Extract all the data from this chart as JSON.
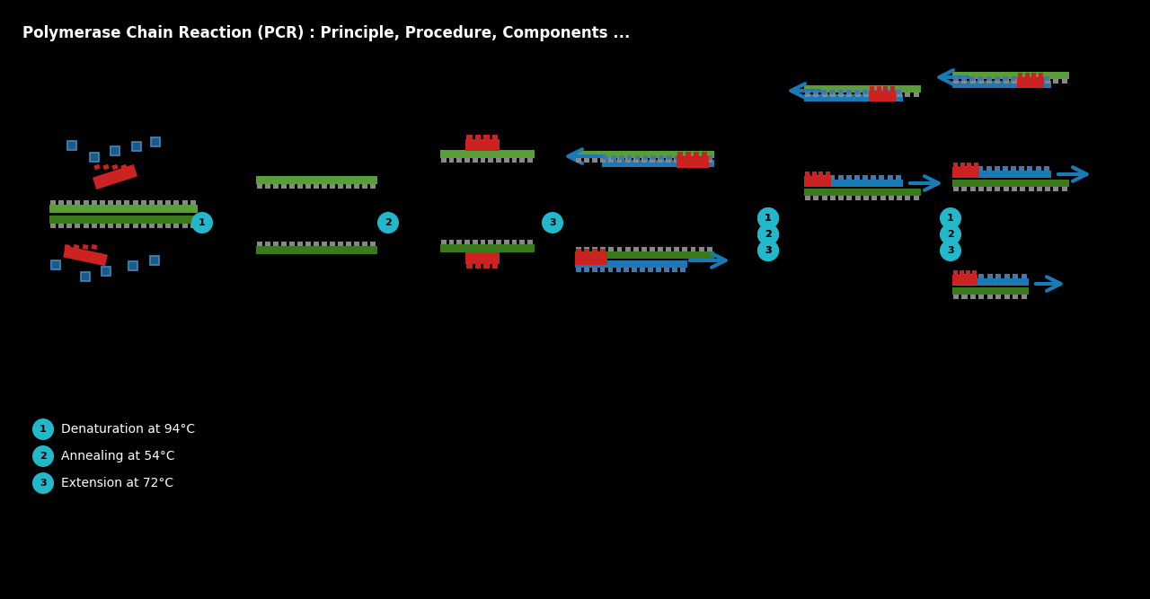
{
  "title": "Polymerase Chain Reaction (PCR) : Principle, Procedure, Components ...",
  "title_color": "#ffffff",
  "bg_color": "#000000",
  "dna_green": "#5a9e3a",
  "dna_dark_green": "#3a7a1a",
  "primer_red": "#cc2222",
  "arrow_blue": "#1a7ab5",
  "circle_cyan": "#22b8cc",
  "polymerase_blue": "#1a5a8a",
  "legend": [
    {
      "num": "1",
      "text": "Denaturation at 94°C"
    },
    {
      "num": "2",
      "text": "Annealing at 54°C"
    },
    {
      "num": "3",
      "text": "Extension at 72°C"
    }
  ]
}
